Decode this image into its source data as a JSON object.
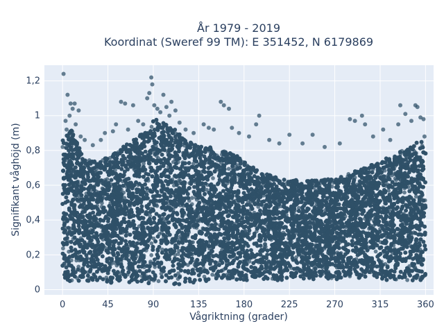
{
  "chart_data": {
    "type": "scatter",
    "title_line1": "År 1979 - 2019",
    "title_line2": "Koordinat (Sweref 99 TM): E 351452, N 6179869",
    "xlabel": "Vågriktning (grader)",
    "ylabel": "Signifikant våghöjd (m)",
    "xlim": [
      -18,
      368
    ],
    "ylim": [
      -0.03,
      1.29
    ],
    "x_ticks": [
      0,
      45,
      90,
      135,
      180,
      225,
      270,
      315,
      360
    ],
    "x_tick_labels": [
      "0",
      "45",
      "90",
      "135",
      "180",
      "225",
      "270",
      "315",
      "360"
    ],
    "y_ticks": [
      0,
      0.2,
      0.4,
      0.6,
      0.8,
      1.0,
      1.2
    ],
    "y_tick_labels": [
      "0",
      "0,2",
      "0,4",
      "0,6",
      "0,8",
      "1",
      "1,2"
    ],
    "grid": true,
    "colors": {
      "marker": "#2f5168",
      "plot_bg": "#e5ecf6",
      "grid": "#ffffff",
      "text": "#2a3f5f"
    },
    "envelope": [
      [
        0,
        0.05,
        0.86
      ],
      [
        5,
        0.04,
        0.9
      ],
      [
        10,
        0.05,
        0.92
      ],
      [
        15,
        0.05,
        0.84
      ],
      [
        20,
        0.05,
        0.76
      ],
      [
        30,
        0.05,
        0.74
      ],
      [
        40,
        0.04,
        0.75
      ],
      [
        45,
        0.04,
        0.76
      ],
      [
        55,
        0.04,
        0.8
      ],
      [
        65,
        0.04,
        0.84
      ],
      [
        75,
        0.04,
        0.88
      ],
      [
        85,
        0.03,
        0.93
      ],
      [
        90,
        0.03,
        0.97
      ],
      [
        95,
        0.03,
        0.98
      ],
      [
        100,
        0.03,
        0.97
      ],
      [
        110,
        0.03,
        0.93
      ],
      [
        120,
        0.03,
        0.88
      ],
      [
        130,
        0.04,
        0.84
      ],
      [
        140,
        0.04,
        0.82
      ],
      [
        150,
        0.05,
        0.82
      ],
      [
        160,
        0.05,
        0.8
      ],
      [
        170,
        0.05,
        0.78
      ],
      [
        180,
        0.05,
        0.74
      ],
      [
        190,
        0.05,
        0.7
      ],
      [
        200,
        0.05,
        0.67
      ],
      [
        210,
        0.05,
        0.65
      ],
      [
        225,
        0.06,
        0.63
      ],
      [
        240,
        0.06,
        0.63
      ],
      [
        255,
        0.06,
        0.63
      ],
      [
        270,
        0.06,
        0.64
      ],
      [
        285,
        0.06,
        0.67
      ],
      [
        300,
        0.06,
        0.7
      ],
      [
        315,
        0.06,
        0.74
      ],
      [
        330,
        0.05,
        0.78
      ],
      [
        345,
        0.05,
        0.82
      ],
      [
        355,
        0.05,
        0.86
      ],
      [
        360,
        0.05,
        0.86
      ]
    ],
    "outliers": [
      [
        1,
        1.24
      ],
      [
        3,
        0.97
      ],
      [
        4,
        0.92
      ],
      [
        5,
        1.12
      ],
      [
        7,
        1.0
      ],
      [
        8,
        1.07
      ],
      [
        10,
        1.04
      ],
      [
        12,
        1.07
      ],
      [
        13,
        0.95
      ],
      [
        16,
        1.03
      ],
      [
        18,
        0.88
      ],
      [
        22,
        0.86
      ],
      [
        30,
        0.83
      ],
      [
        38,
        0.86
      ],
      [
        42,
        0.9
      ],
      [
        50,
        0.91
      ],
      [
        53,
        0.95
      ],
      [
        58,
        1.08
      ],
      [
        62,
        1.07
      ],
      [
        65,
        0.92
      ],
      [
        70,
        1.06
      ],
      [
        75,
        0.97
      ],
      [
        80,
        0.95
      ],
      [
        84,
        1.1
      ],
      [
        86,
        1.13
      ],
      [
        88,
        1.22
      ],
      [
        89,
        1.18
      ],
      [
        91,
        1.06
      ],
      [
        94,
        1.04
      ],
      [
        97,
        1.02
      ],
      [
        100,
        1.12
      ],
      [
        103,
        1.05
      ],
      [
        106,
        1.0
      ],
      [
        108,
        1.08
      ],
      [
        112,
        1.03
      ],
      [
        116,
        0.96
      ],
      [
        122,
        0.92
      ],
      [
        130,
        0.9
      ],
      [
        140,
        0.95
      ],
      [
        145,
        0.93
      ],
      [
        150,
        0.92
      ],
      [
        157,
        1.08
      ],
      [
        160,
        1.06
      ],
      [
        165,
        1.04
      ],
      [
        168,
        0.93
      ],
      [
        175,
        0.9
      ],
      [
        185,
        0.88
      ],
      [
        192,
        0.95
      ],
      [
        195,
        1.0
      ],
      [
        205,
        0.86
      ],
      [
        215,
        0.84
      ],
      [
        225,
        0.89
      ],
      [
        238,
        0.84
      ],
      [
        248,
        0.89
      ],
      [
        260,
        0.82
      ],
      [
        275,
        0.84
      ],
      [
        285,
        0.98
      ],
      [
        290,
        0.97
      ],
      [
        297,
        1.0
      ],
      [
        300,
        0.95
      ],
      [
        308,
        0.88
      ],
      [
        318,
        0.92
      ],
      [
        325,
        0.86
      ],
      [
        333,
        0.95
      ],
      [
        335,
        1.06
      ],
      [
        340,
        1.01
      ],
      [
        346,
        0.97
      ],
      [
        350,
        1.06
      ],
      [
        352,
        1.05
      ],
      [
        355,
        0.99
      ],
      [
        358,
        0.98
      ],
      [
        359,
        0.88
      ]
    ],
    "sample_count": 18000
  }
}
